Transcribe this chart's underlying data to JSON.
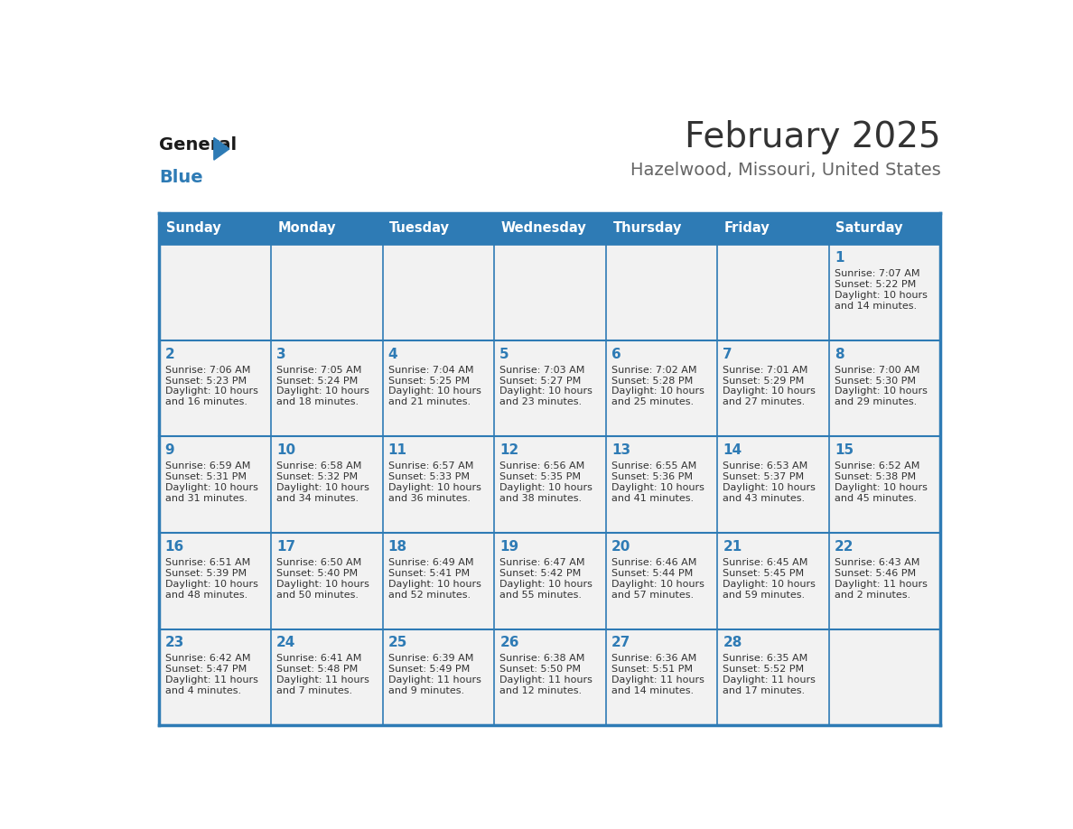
{
  "title": "February 2025",
  "subtitle": "Hazelwood, Missouri, United States",
  "days_of_week": [
    "Sunday",
    "Monday",
    "Tuesday",
    "Wednesday",
    "Thursday",
    "Friday",
    "Saturday"
  ],
  "header_bg": "#2E7BB5",
  "header_text": "#FFFFFF",
  "row_bg": "#F2F2F2",
  "cell_text_color": "#333333",
  "day_num_color": "#2E7BB5",
  "border_color": "#2E7BB5",
  "title_color": "#333333",
  "subtitle_color": "#666666",
  "logo_general_color": "#1a1a1a",
  "logo_blue_color": "#2E7BB5",
  "weeks": [
    [
      {
        "day": null,
        "sunrise": null,
        "sunset": null,
        "daylight_line1": null,
        "daylight_line2": null
      },
      {
        "day": null,
        "sunrise": null,
        "sunset": null,
        "daylight_line1": null,
        "daylight_line2": null
      },
      {
        "day": null,
        "sunrise": null,
        "sunset": null,
        "daylight_line1": null,
        "daylight_line2": null
      },
      {
        "day": null,
        "sunrise": null,
        "sunset": null,
        "daylight_line1": null,
        "daylight_line2": null
      },
      {
        "day": null,
        "sunrise": null,
        "sunset": null,
        "daylight_line1": null,
        "daylight_line2": null
      },
      {
        "day": null,
        "sunrise": null,
        "sunset": null,
        "daylight_line1": null,
        "daylight_line2": null
      },
      {
        "day": 1,
        "sunrise": "7:07 AM",
        "sunset": "5:22 PM",
        "daylight_line1": "Daylight: 10 hours",
        "daylight_line2": "and 14 minutes."
      }
    ],
    [
      {
        "day": 2,
        "sunrise": "7:06 AM",
        "sunset": "5:23 PM",
        "daylight_line1": "Daylight: 10 hours",
        "daylight_line2": "and 16 minutes."
      },
      {
        "day": 3,
        "sunrise": "7:05 AM",
        "sunset": "5:24 PM",
        "daylight_line1": "Daylight: 10 hours",
        "daylight_line2": "and 18 minutes."
      },
      {
        "day": 4,
        "sunrise": "7:04 AM",
        "sunset": "5:25 PM",
        "daylight_line1": "Daylight: 10 hours",
        "daylight_line2": "and 21 minutes."
      },
      {
        "day": 5,
        "sunrise": "7:03 AM",
        "sunset": "5:27 PM",
        "daylight_line1": "Daylight: 10 hours",
        "daylight_line2": "and 23 minutes."
      },
      {
        "day": 6,
        "sunrise": "7:02 AM",
        "sunset": "5:28 PM",
        "daylight_line1": "Daylight: 10 hours",
        "daylight_line2": "and 25 minutes."
      },
      {
        "day": 7,
        "sunrise": "7:01 AM",
        "sunset": "5:29 PM",
        "daylight_line1": "Daylight: 10 hours",
        "daylight_line2": "and 27 minutes."
      },
      {
        "day": 8,
        "sunrise": "7:00 AM",
        "sunset": "5:30 PM",
        "daylight_line1": "Daylight: 10 hours",
        "daylight_line2": "and 29 minutes."
      }
    ],
    [
      {
        "day": 9,
        "sunrise": "6:59 AM",
        "sunset": "5:31 PM",
        "daylight_line1": "Daylight: 10 hours",
        "daylight_line2": "and 31 minutes."
      },
      {
        "day": 10,
        "sunrise": "6:58 AM",
        "sunset": "5:32 PM",
        "daylight_line1": "Daylight: 10 hours",
        "daylight_line2": "and 34 minutes."
      },
      {
        "day": 11,
        "sunrise": "6:57 AM",
        "sunset": "5:33 PM",
        "daylight_line1": "Daylight: 10 hours",
        "daylight_line2": "and 36 minutes."
      },
      {
        "day": 12,
        "sunrise": "6:56 AM",
        "sunset": "5:35 PM",
        "daylight_line1": "Daylight: 10 hours",
        "daylight_line2": "and 38 minutes."
      },
      {
        "day": 13,
        "sunrise": "6:55 AM",
        "sunset": "5:36 PM",
        "daylight_line1": "Daylight: 10 hours",
        "daylight_line2": "and 41 minutes."
      },
      {
        "day": 14,
        "sunrise": "6:53 AM",
        "sunset": "5:37 PM",
        "daylight_line1": "Daylight: 10 hours",
        "daylight_line2": "and 43 minutes."
      },
      {
        "day": 15,
        "sunrise": "6:52 AM",
        "sunset": "5:38 PM",
        "daylight_line1": "Daylight: 10 hours",
        "daylight_line2": "and 45 minutes."
      }
    ],
    [
      {
        "day": 16,
        "sunrise": "6:51 AM",
        "sunset": "5:39 PM",
        "daylight_line1": "Daylight: 10 hours",
        "daylight_line2": "and 48 minutes."
      },
      {
        "day": 17,
        "sunrise": "6:50 AM",
        "sunset": "5:40 PM",
        "daylight_line1": "Daylight: 10 hours",
        "daylight_line2": "and 50 minutes."
      },
      {
        "day": 18,
        "sunrise": "6:49 AM",
        "sunset": "5:41 PM",
        "daylight_line1": "Daylight: 10 hours",
        "daylight_line2": "and 52 minutes."
      },
      {
        "day": 19,
        "sunrise": "6:47 AM",
        "sunset": "5:42 PM",
        "daylight_line1": "Daylight: 10 hours",
        "daylight_line2": "and 55 minutes."
      },
      {
        "day": 20,
        "sunrise": "6:46 AM",
        "sunset": "5:44 PM",
        "daylight_line1": "Daylight: 10 hours",
        "daylight_line2": "and 57 minutes."
      },
      {
        "day": 21,
        "sunrise": "6:45 AM",
        "sunset": "5:45 PM",
        "daylight_line1": "Daylight: 10 hours",
        "daylight_line2": "and 59 minutes."
      },
      {
        "day": 22,
        "sunrise": "6:43 AM",
        "sunset": "5:46 PM",
        "daylight_line1": "Daylight: 11 hours",
        "daylight_line2": "and 2 minutes."
      }
    ],
    [
      {
        "day": 23,
        "sunrise": "6:42 AM",
        "sunset": "5:47 PM",
        "daylight_line1": "Daylight: 11 hours",
        "daylight_line2": "and 4 minutes."
      },
      {
        "day": 24,
        "sunrise": "6:41 AM",
        "sunset": "5:48 PM",
        "daylight_line1": "Daylight: 11 hours",
        "daylight_line2": "and 7 minutes."
      },
      {
        "day": 25,
        "sunrise": "6:39 AM",
        "sunset": "5:49 PM",
        "daylight_line1": "Daylight: 11 hours",
        "daylight_line2": "and 9 minutes."
      },
      {
        "day": 26,
        "sunrise": "6:38 AM",
        "sunset": "5:50 PM",
        "daylight_line1": "Daylight: 11 hours",
        "daylight_line2": "and 12 minutes."
      },
      {
        "day": 27,
        "sunrise": "6:36 AM",
        "sunset": "5:51 PM",
        "daylight_line1": "Daylight: 11 hours",
        "daylight_line2": "and 14 minutes."
      },
      {
        "day": 28,
        "sunrise": "6:35 AM",
        "sunset": "5:52 PM",
        "daylight_line1": "Daylight: 11 hours",
        "daylight_line2": "and 17 minutes."
      },
      {
        "day": null,
        "sunrise": null,
        "sunset": null,
        "daylight_line1": null,
        "daylight_line2": null
      }
    ]
  ]
}
